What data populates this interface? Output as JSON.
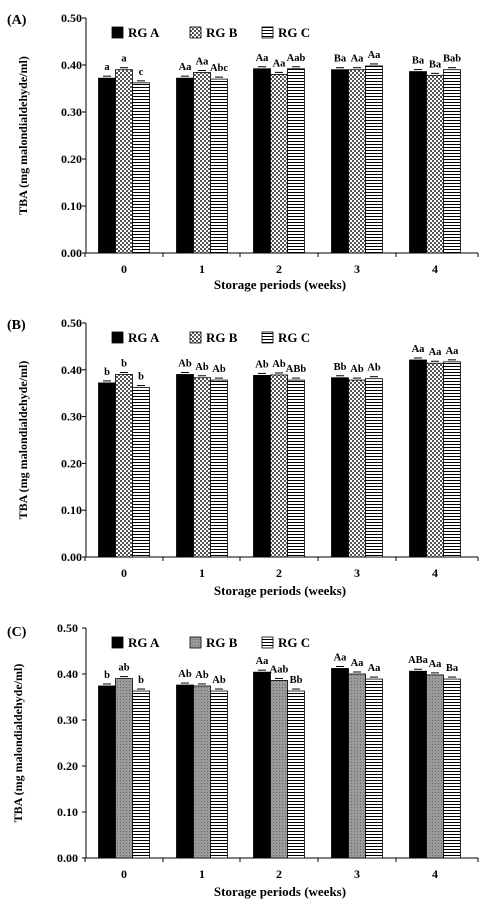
{
  "chart_data": [
    {
      "type": "bar",
      "panel_label": "(A)",
      "xlabel": "Storage periods (weeks)",
      "ylabel": "TBA (mg malondialdehyde/ml)",
      "ylim": [
        0,
        0.5
      ],
      "yticks": [
        "0.00",
        "0.10",
        "0.20",
        "0.30",
        "0.40",
        "0.50"
      ],
      "categories": [
        "0",
        "1",
        "2",
        "3",
        "4"
      ],
      "legend_position": "top-left",
      "series": [
        {
          "name": "RG A",
          "values": [
            0.372,
            0.372,
            0.392,
            0.39,
            0.386
          ],
          "labels": [
            "a",
            "Aa",
            "Aa",
            "Ba",
            "Ba"
          ]
        },
        {
          "name": "RG B",
          "values": [
            0.39,
            0.384,
            0.38,
            0.39,
            0.378
          ],
          "labels": [
            "a",
            "Aa",
            "Aa",
            "Aa",
            "Ba"
          ]
        },
        {
          "name": "RG C",
          "values": [
            0.362,
            0.37,
            0.392,
            0.398,
            0.39
          ],
          "labels": [
            "c",
            "Abc",
            "Aab",
            "Aa",
            "Bab"
          ]
        }
      ]
    },
    {
      "type": "bar",
      "panel_label": "(B)",
      "xlabel": "Storage periods (weeks)",
      "ylabel": "TBA (mg malondialdehyde/ml)",
      "ylim": [
        0,
        0.5
      ],
      "yticks": [
        "0.00",
        "0.10",
        "0.20",
        "0.30",
        "0.40",
        "0.50"
      ],
      "categories": [
        "0",
        "1",
        "2",
        "3",
        "4"
      ],
      "legend_position": "top-left",
      "series": [
        {
          "name": "RG A",
          "values": [
            0.372,
            0.39,
            0.388,
            0.383,
            0.421
          ],
          "labels": [
            "b",
            "Ab",
            "Ab",
            "Bb",
            "Aa"
          ]
        },
        {
          "name": "RG B",
          "values": [
            0.39,
            0.383,
            0.389,
            0.378,
            0.414
          ],
          "labels": [
            "b",
            "Ab",
            "Ab",
            "Ab",
            "Aa"
          ]
        },
        {
          "name": "RG C",
          "values": [
            0.362,
            0.378,
            0.378,
            0.381,
            0.417
          ],
          "labels": [
            "b",
            "Ab",
            "ABb",
            "Ab",
            "Aa"
          ]
        }
      ]
    },
    {
      "type": "bar",
      "panel_label": "(C)",
      "xlabel": "Storage periods (weeks)",
      "ylabel": "TBA (mg malondialdehyde/ml)",
      "ylim": [
        0,
        0.5
      ],
      "yticks": [
        "0.00",
        "0.10",
        "0.20",
        "0.30",
        "0.40",
        "0.50"
      ],
      "categories": [
        "0",
        "1",
        "2",
        "3",
        "4"
      ],
      "legend_position": "top-left",
      "series": [
        {
          "name": "RG A",
          "values": [
            0.374,
            0.376,
            0.404,
            0.412,
            0.406
          ],
          "labels": [
            "b",
            "Ab",
            "Aa",
            "Aa",
            "ABa"
          ]
        },
        {
          "name": "RG B",
          "values": [
            0.39,
            0.374,
            0.386,
            0.4,
            0.398
          ],
          "labels": [
            "ab",
            "Ab",
            "Aab",
            "Aa",
            "Aa"
          ]
        },
        {
          "name": "RG C",
          "values": [
            0.363,
            0.363,
            0.363,
            0.389,
            0.389
          ],
          "labels": [
            "b",
            "Ab",
            "Bb",
            "Aa",
            "Ba"
          ]
        }
      ]
    }
  ]
}
